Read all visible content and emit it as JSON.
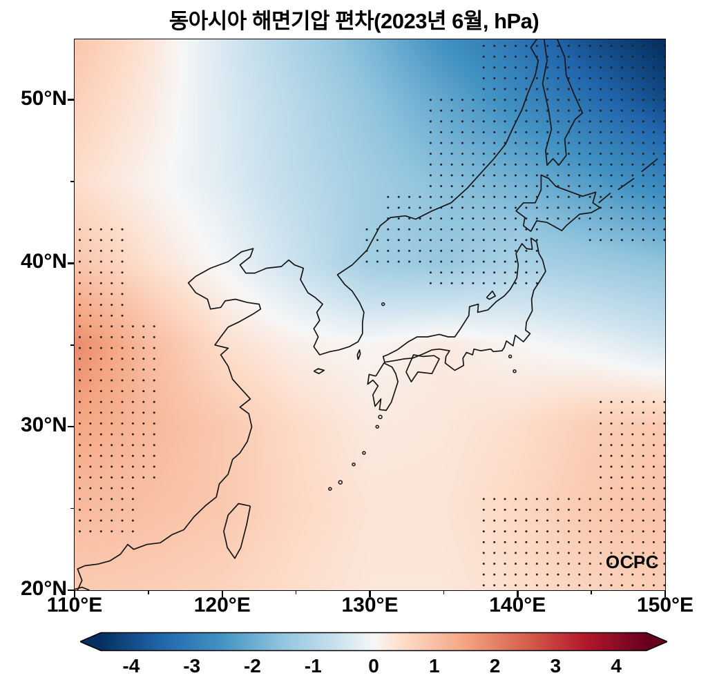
{
  "title": "동아시아 해면기압 편차(2023년 6월, hPa)",
  "watermark": "OCPC",
  "axes": {
    "x_ticks": [
      "110°E",
      "120°E",
      "130°E",
      "140°E",
      "150°E"
    ],
    "y_ticks": [
      "20°N",
      "30°N",
      "40°N",
      "50°N"
    ]
  },
  "colorbar": {
    "min": -4.5,
    "max": 4.5,
    "extend": "both",
    "tick_values": [
      -4,
      -3,
      -2,
      -1,
      0,
      1,
      2,
      3,
      4
    ],
    "tick_labels": [
      "-4",
      "-3",
      "-2",
      "-1",
      "0",
      "1",
      "2",
      "3",
      "4"
    ]
  },
  "chart_data": {
    "type": "heatmap",
    "title": "동아시아 해면기압 편차(2023년 6월, hPa)",
    "units": "hPa",
    "lon_range": [
      110,
      150
    ],
    "lat_range": [
      20,
      53.7
    ],
    "x_tick_values": [
      110,
      120,
      130,
      140,
      150
    ],
    "y_tick_values": [
      20,
      30,
      40,
      50
    ],
    "lons": [
      110,
      115,
      120,
      125,
      130,
      135,
      140,
      145,
      150
    ],
    "lats": [
      54,
      50,
      45,
      40,
      35,
      30,
      25,
      20
    ],
    "values": [
      [
        0.9,
        0.35,
        -0.4,
        -1.1,
        -1.8,
        -2.6,
        -3.2,
        -4.0,
        -4.6
      ],
      [
        0.7,
        0.25,
        -0.35,
        -0.9,
        -1.5,
        -2.1,
        -2.7,
        -3.3,
        -4.0
      ],
      [
        0.45,
        0.1,
        -0.3,
        -0.8,
        -1.25,
        -1.6,
        -1.9,
        -2.3,
        -2.8
      ],
      [
        0.9,
        0.4,
        -0.05,
        -0.6,
        -1.25,
        -1.4,
        -1.1,
        -1.3,
        -1.5
      ],
      [
        1.9,
        1.1,
        0.45,
        0.15,
        0.05,
        0.25,
        0.05,
        -0.15,
        -0.45
      ],
      [
        1.45,
        1.15,
        0.85,
        0.5,
        0.25,
        0.3,
        0.45,
        0.75,
        0.85
      ],
      [
        1.1,
        1.0,
        0.85,
        0.55,
        0.35,
        0.35,
        0.55,
        0.85,
        0.95
      ],
      [
        0.8,
        0.75,
        0.65,
        0.45,
        0.3,
        0.3,
        0.45,
        0.65,
        0.75
      ]
    ],
    "colormap": [
      [
        -4.5,
        "#053061"
      ],
      [
        -3.5,
        "#2166ac"
      ],
      [
        -2.5,
        "#4393c3"
      ],
      [
        -1.5,
        "#92c5de"
      ],
      [
        -0.5,
        "#d1e5f0"
      ],
      [
        0,
        "#f7f7f7"
      ],
      [
        0.5,
        "#fddbc7"
      ],
      [
        1.5,
        "#f4a582"
      ],
      [
        2.5,
        "#d6604d"
      ],
      [
        3.5,
        "#b2182b"
      ],
      [
        4.5,
        "#67001f"
      ]
    ],
    "significance_regions": [
      {
        "lon": [
          110,
          113.8
        ],
        "lat": [
          36.5,
          42.5
        ]
      },
      {
        "lon": [
          110,
          115.8
        ],
        "lat": [
          26.5,
          36.5
        ]
      },
      {
        "lon": [
          110,
          114.2
        ],
        "lat": [
          23,
          26.5
        ]
      },
      {
        "lon": [
          129.5,
          142
        ],
        "lat": [
          39.5,
          42.2
        ]
      },
      {
        "lon": [
          131,
          144.5
        ],
        "lat": [
          42.2,
          44.3
        ]
      },
      {
        "lon": [
          133.5,
          141.5
        ],
        "lat": [
          38.3,
          39.5
        ]
      },
      {
        "lon": [
          137.5,
          150
        ],
        "lat": [
          44.3,
          53.6
        ]
      },
      {
        "lon": [
          134,
          137.5
        ],
        "lat": [
          44.3,
          50.5
        ]
      },
      {
        "lon": [
          144.5,
          150
        ],
        "lat": [
          41,
          44.3
        ]
      },
      {
        "lon": [
          145,
          150
        ],
        "lat": [
          26,
          32
        ]
      },
      {
        "lon": [
          137.5,
          150
        ],
        "lat": [
          20.3,
          25.8
        ]
      }
    ]
  }
}
